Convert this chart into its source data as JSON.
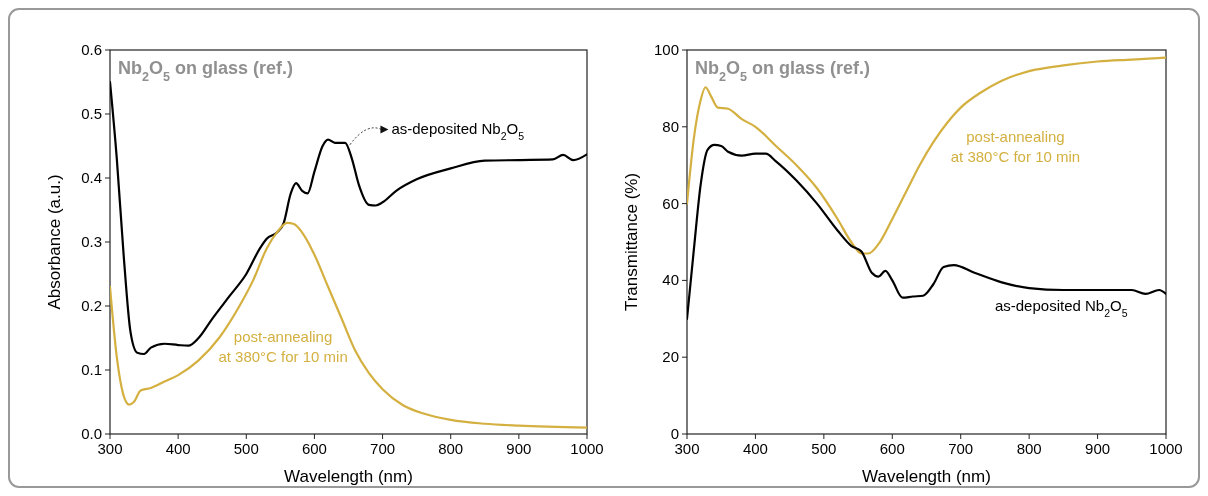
{
  "chart_data": [
    {
      "type": "line",
      "title": "Nb$_{2}$O$_{5}$ on glass (ref.)",
      "xlabel": "Wavelength (nm)",
      "ylabel": "Absorbance (a.u.)",
      "xlim": [
        300,
        1000
      ],
      "ylim": [
        0,
        0.6
      ],
      "xticks": [
        300,
        400,
        500,
        600,
        700,
        800,
        900,
        1000
      ],
      "yticks": [
        {
          "value": 0,
          "label": "0.0"
        },
        0.1,
        0.2,
        0.3,
        0.4,
        0.5,
        0.6
      ],
      "grid": false,
      "series": [
        {
          "name": "as-deposited Nb$_{2}$O$_{5}$",
          "color": "#000000",
          "x": [
            300,
            310,
            320,
            330,
            340,
            350,
            360,
            380,
            400,
            415,
            430,
            450,
            475,
            500,
            520,
            530,
            545,
            555,
            565,
            573,
            582,
            590,
            600,
            612,
            620,
            630,
            645,
            655,
            665,
            680,
            690,
            700,
            720,
            750,
            800,
            850,
            900,
            950,
            965,
            980,
            1000
          ],
          "values": [
            0.55,
            0.43,
            0.28,
            0.16,
            0.127,
            0.125,
            0.135,
            0.141,
            0.139,
            0.138,
            0.15,
            0.18,
            0.215,
            0.25,
            0.29,
            0.305,
            0.315,
            0.33,
            0.375,
            0.392,
            0.38,
            0.376,
            0.41,
            0.45,
            0.46,
            0.455,
            0.455,
            0.43,
            0.39,
            0.358,
            0.357,
            0.362,
            0.38,
            0.398,
            0.415,
            0.427,
            0.428,
            0.429,
            0.436,
            0.428,
            0.437
          ]
        },
        {
          "name": "post-annealing at 380°C for 10 min",
          "color": "#d4b040",
          "x": [
            300,
            310,
            320,
            328,
            335,
            345,
            360,
            380,
            400,
            430,
            460,
            490,
            510,
            530,
            545,
            560,
            570,
            585,
            600,
            620,
            640,
            660,
            680,
            700,
            730,
            760,
            800,
            850,
            900,
            1000
          ],
          "values": [
            0.23,
            0.12,
            0.06,
            0.046,
            0.05,
            0.068,
            0.072,
            0.082,
            0.092,
            0.115,
            0.15,
            0.2,
            0.24,
            0.29,
            0.315,
            0.33,
            0.328,
            0.31,
            0.28,
            0.23,
            0.18,
            0.13,
            0.095,
            0.07,
            0.045,
            0.032,
            0.022,
            0.016,
            0.013,
            0.01
          ]
        }
      ]
    },
    {
      "type": "line",
      "title": "Nb$_{2}$O$_{5}$ on glass (ref.)",
      "xlabel": "Wavelength (nm)",
      "ylabel": "Transmittance (%)",
      "xlim": [
        300,
        1000
      ],
      "ylim": [
        0,
        100
      ],
      "xticks": [
        300,
        400,
        500,
        600,
        700,
        800,
        900,
        1000
      ],
      "yticks": [
        0,
        20,
        40,
        60,
        80,
        100
      ],
      "grid": false,
      "series": [
        {
          "name": "post-annealing at 380°C for 10 min",
          "color": "#d4b040",
          "x": [
            300,
            310,
            320,
            327,
            335,
            345,
            360,
            380,
            400,
            430,
            460,
            490,
            520,
            540,
            555,
            565,
            580,
            600,
            620,
            640,
            660,
            680,
            700,
            730,
            760,
            800,
            850,
            900,
            950,
            1000
          ],
          "values": [
            60,
            77,
            87,
            90.3,
            88,
            85,
            84.7,
            82,
            80,
            75,
            70,
            64,
            56,
            50,
            47,
            47,
            49.5,
            56,
            63,
            70,
            76,
            81,
            85,
            89,
            92,
            94.5,
            96,
            97,
            97.5,
            98
          ]
        },
        {
          "name": "as-deposited Nb$_{2}$O$_{5}$",
          "color": "#000000",
          "x": [
            300,
            310,
            320,
            330,
            340,
            350,
            360,
            380,
            400,
            415,
            430,
            460,
            490,
            520,
            540,
            555,
            570,
            580,
            590,
            600,
            615,
            630,
            645,
            660,
            675,
            690,
            720,
            760,
            800,
            850,
            900,
            950,
            970,
            990,
            1000
          ],
          "values": [
            30,
            48,
            65,
            74,
            75.3,
            75,
            73.5,
            72.5,
            73,
            73,
            71,
            66,
            60,
            53,
            49,
            47.5,
            42,
            41,
            42.5,
            40,
            35.5,
            35.8,
            36,
            39,
            43.5,
            44,
            42,
            39.5,
            38,
            37.5,
            37.5,
            37.5,
            36.5,
            37.5,
            36.5
          ]
        }
      ]
    }
  ]
}
